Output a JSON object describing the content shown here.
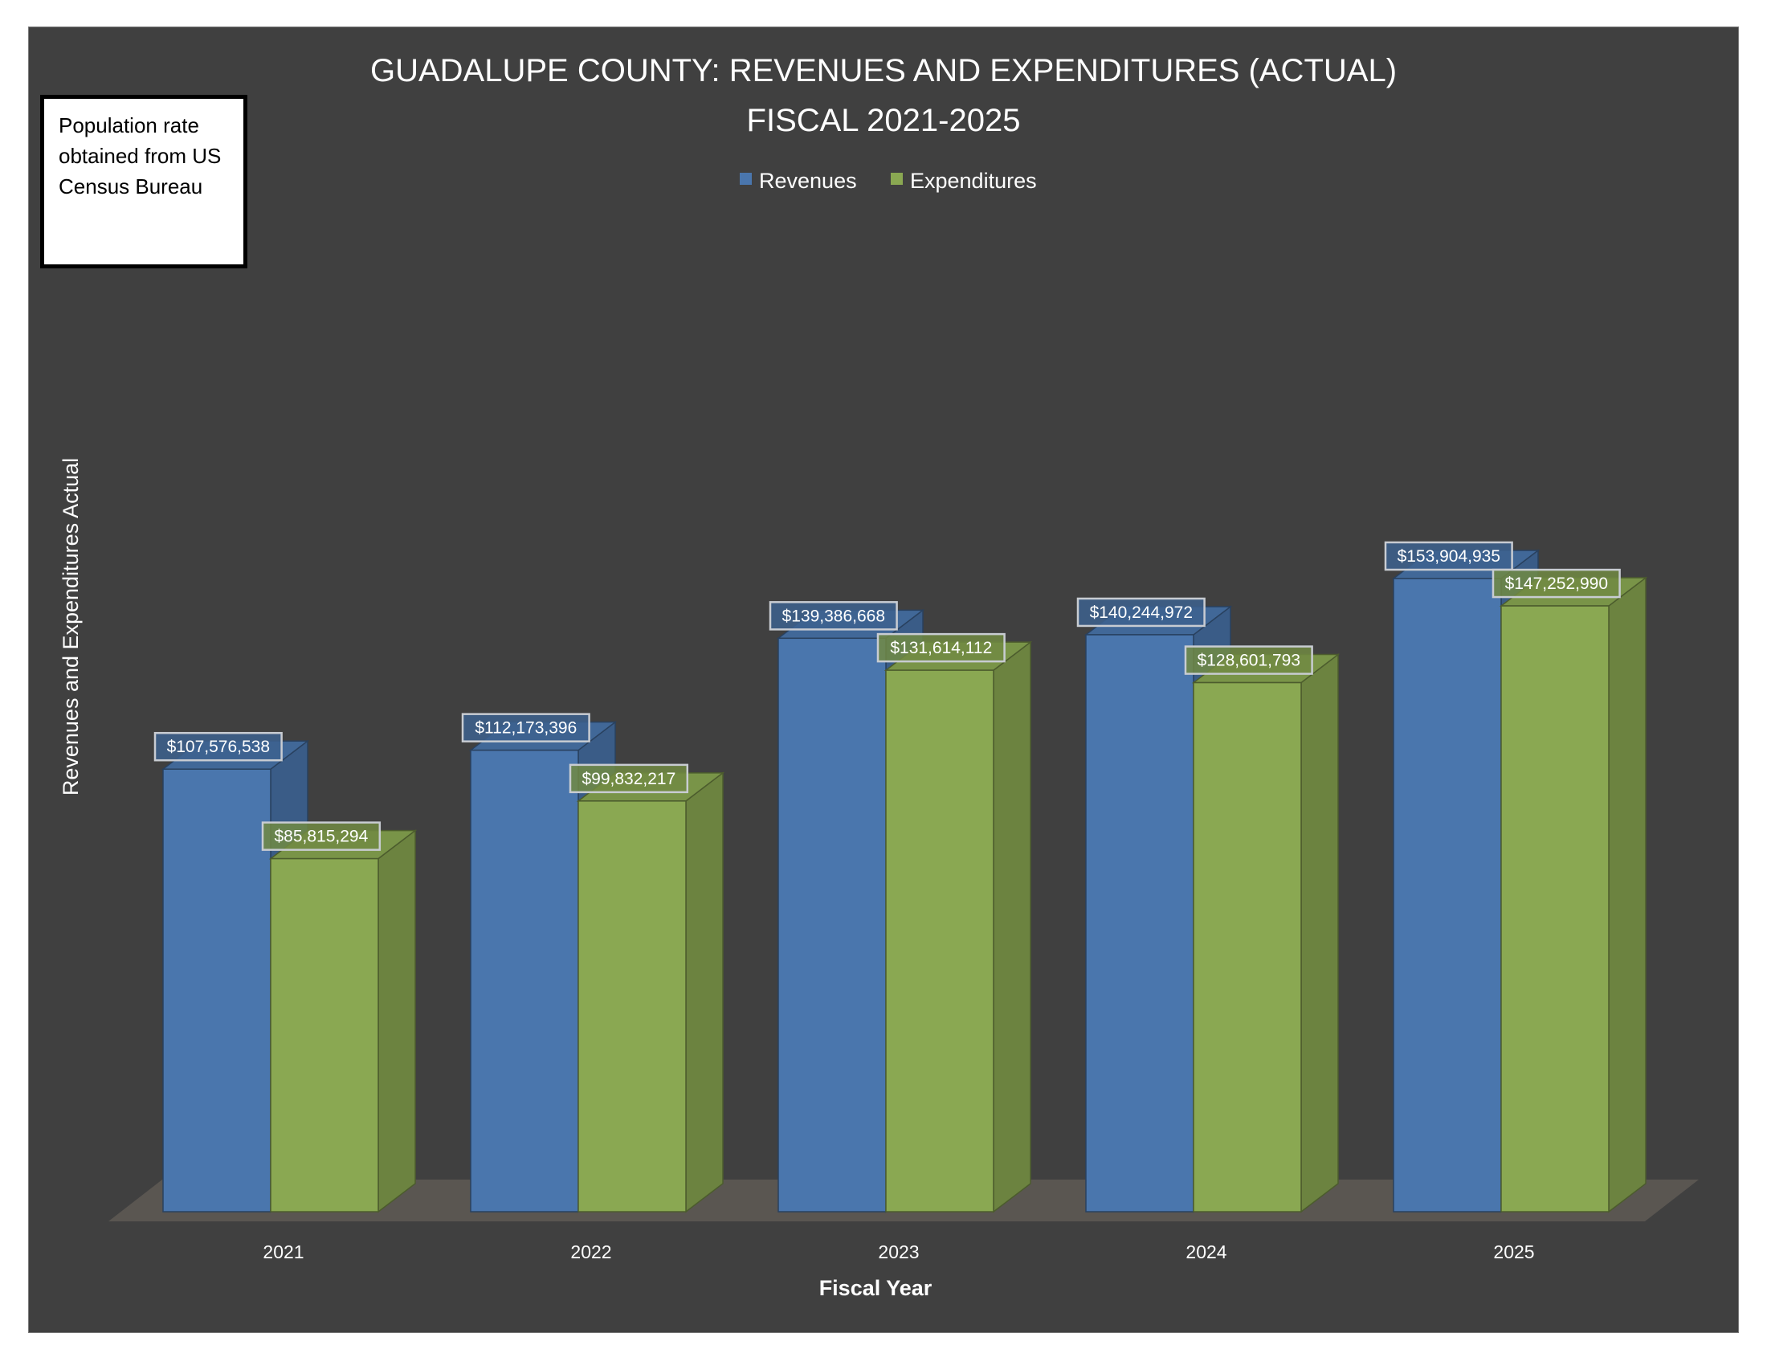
{
  "chart_data": {
    "type": "bar",
    "title": "GUADALUPE COUNTY: REVENUES AND EXPENDITURES (ACTUAL)",
    "subtitle": "FISCAL 2021-2025",
    "xlabel": "Fiscal Year",
    "ylabel": "Revenues and Expenditures Actual",
    "categories": [
      "2021",
      "2022",
      "2023",
      "2024",
      "2025"
    ],
    "series": [
      {
        "name": "Revenues",
        "values": [
          107576538,
          112173396,
          139386668,
          140244972,
          153904935
        ],
        "labels": [
          "$107,576,538",
          "$112,173,396",
          "$139,386,668",
          "$140,244,972",
          "$153,904,935"
        ],
        "color": "#4a76ad"
      },
      {
        "name": "Expenditures",
        "values": [
          85815294,
          99832217,
          131614112,
          128601793,
          147252990
        ],
        "labels": [
          "$85,815,294",
          "$99,832,217",
          "$131,614,112",
          "$128,601,793",
          "$147,252,990"
        ],
        "color": "#8aa852"
      }
    ],
    "ylim": [
      0,
      160000000
    ],
    "grid": false,
    "legend": "top-center",
    "background": "#404040"
  },
  "note": {
    "text": "Population rate obtained from US Census Bureau"
  }
}
